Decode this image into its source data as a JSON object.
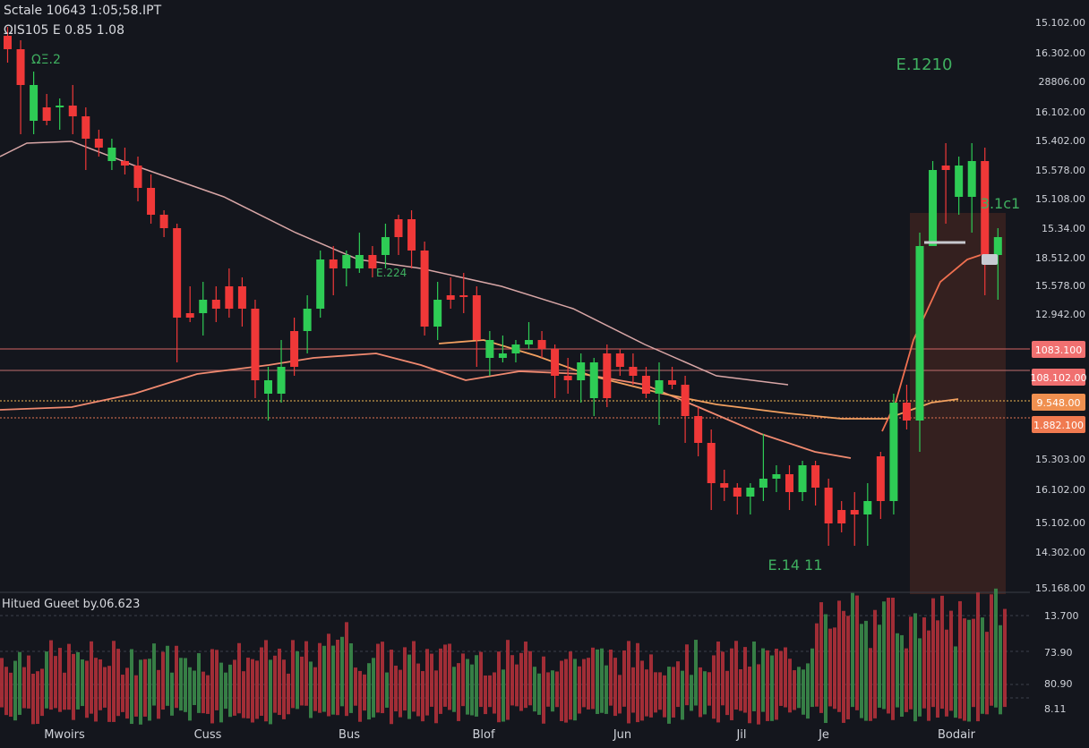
{
  "header": {
    "line1": "Sctale 10643 1:05;58.IPT",
    "line2": "ΩIS105 E 0.85 1.08"
  },
  "volume_panel": {
    "label": "Hitued Gueet by.06.623"
  },
  "chart_data": {
    "type": "candlestick",
    "x_tick_labels": [
      "Mwoirs",
      "Cuss",
      "Bus",
      "Blof",
      "Jun",
      "Jil",
      "Je",
      "Bodair"
    ],
    "price_axis_labels": [
      "15.102.00",
      "16.302.00",
      "28806.00",
      "16.102.00",
      "15.402.00",
      "15.578.00",
      "15.108.00",
      "15.34.00",
      "18.512.00",
      "15.578.00",
      "12.942.00",
      "15.303.00",
      "16.102.00",
      "15.102.00",
      "14.302.00",
      "15.168.00"
    ],
    "volume_axis_labels": [
      "13.700",
      "73.90",
      "80.90",
      "8.11"
    ],
    "price_tags": [
      {
        "text": "1083.100",
        "color": "#f07070"
      },
      {
        "text": "108.102.00",
        "color": "#f07070"
      },
      {
        "text": "9.548.00",
        "color": "#f09050"
      },
      {
        "text": "1.882.100",
        "color": "#f07a50"
      }
    ],
    "annotations": [
      "E.1210",
      "3.1c1",
      "E.14 11",
      "E.224",
      "ΩΞ.2"
    ],
    "candles": [
      [
        40,
        55,
        30,
        70,
        0
      ],
      [
        55,
        95,
        45,
        150,
        0
      ],
      [
        95,
        135,
        80,
        150,
        1
      ],
      [
        135,
        120,
        105,
        140,
        0
      ],
      [
        120,
        118,
        110,
        145,
        1
      ],
      [
        118,
        130,
        95,
        150,
        0
      ],
      [
        130,
        155,
        120,
        190,
        0
      ],
      [
        155,
        165,
        145,
        175,
        0
      ],
      [
        165,
        180,
        155,
        190,
        1
      ],
      [
        180,
        185,
        165,
        195,
        0
      ],
      [
        185,
        210,
        175,
        225,
        0
      ],
      [
        210,
        240,
        195,
        250,
        0
      ],
      [
        240,
        255,
        235,
        265,
        0
      ],
      [
        255,
        355,
        250,
        405,
        0
      ],
      [
        355,
        350,
        320,
        360,
        0
      ],
      [
        350,
        335,
        315,
        375,
        1
      ],
      [
        335,
        345,
        320,
        360,
        0
      ],
      [
        345,
        320,
        300,
        355,
        0
      ],
      [
        320,
        345,
        310,
        365,
        0
      ],
      [
        345,
        425,
        335,
        445,
        0
      ],
      [
        425,
        440,
        410,
        470,
        1
      ],
      [
        440,
        410,
        380,
        450,
        1
      ],
      [
        410,
        370,
        355,
        420,
        0
      ],
      [
        370,
        345,
        330,
        395,
        1
      ],
      [
        345,
        290,
        280,
        355,
        1
      ],
      [
        290,
        300,
        275,
        330,
        0
      ],
      [
        300,
        285,
        280,
        320,
        1
      ],
      [
        285,
        300,
        260,
        305,
        1
      ],
      [
        300,
        285,
        275,
        310,
        0
      ],
      [
        285,
        265,
        250,
        300,
        1
      ],
      [
        265,
        245,
        240,
        285,
        0
      ],
      [
        245,
        280,
        235,
        300,
        0
      ],
      [
        280,
        365,
        270,
        375,
        0
      ],
      [
        365,
        335,
        315,
        380,
        1
      ],
      [
        335,
        330,
        310,
        345,
        0
      ],
      [
        330,
        330,
        305,
        350,
        0
      ],
      [
        330,
        380,
        320,
        410,
        0
      ],
      [
        380,
        400,
        370,
        420,
        1
      ],
      [
        400,
        395,
        375,
        405,
        1
      ],
      [
        395,
        385,
        380,
        405,
        1
      ],
      [
        385,
        380,
        360,
        390,
        1
      ],
      [
        380,
        390,
        370,
        400,
        0
      ],
      [
        390,
        420,
        385,
        445,
        0
      ],
      [
        420,
        425,
        400,
        440,
        0
      ],
      [
        425,
        405,
        395,
        450,
        1
      ],
      [
        405,
        445,
        400,
        465,
        1
      ],
      [
        445,
        395,
        385,
        455,
        0
      ],
      [
        395,
        410,
        390,
        420,
        0
      ],
      [
        410,
        420,
        395,
        430,
        0
      ],
      [
        420,
        440,
        410,
        445,
        0
      ],
      [
        440,
        425,
        405,
        475,
        1
      ],
      [
        425,
        430,
        410,
        435,
        0
      ],
      [
        430,
        465,
        420,
        495,
        0
      ],
      [
        465,
        495,
        455,
        510,
        0
      ],
      [
        495,
        540,
        480,
        570,
        0
      ],
      [
        540,
        545,
        525,
        560,
        0
      ],
      [
        545,
        555,
        540,
        575,
        0
      ],
      [
        555,
        545,
        540,
        575,
        1
      ],
      [
        545,
        535,
        485,
        560,
        1
      ],
      [
        535,
        530,
        520,
        550,
        1
      ],
      [
        530,
        550,
        520,
        570,
        0
      ],
      [
        550,
        520,
        515,
        560,
        1
      ],
      [
        520,
        545,
        515,
        565,
        0
      ],
      [
        545,
        585,
        535,
        610,
        0
      ],
      [
        585,
        570,
        560,
        595,
        0
      ],
      [
        570,
        575,
        550,
        610,
        0
      ],
      [
        575,
        560,
        540,
        610,
        1
      ],
      [
        560,
        510,
        505,
        580,
        0
      ],
      [
        560,
        450,
        440,
        575,
        1
      ],
      [
        450,
        470,
        430,
        480,
        0
      ],
      [
        470,
        275,
        260,
        505,
        1
      ],
      [
        275,
        190,
        180,
        275,
        1
      ],
      [
        190,
        185,
        160,
        250,
        0
      ],
      [
        185,
        220,
        175,
        240,
        1
      ],
      [
        220,
        180,
        160,
        260,
        1
      ],
      [
        180,
        285,
        165,
        330,
        0
      ],
      [
        285,
        265,
        255,
        335,
        1
      ]
    ]
  }
}
